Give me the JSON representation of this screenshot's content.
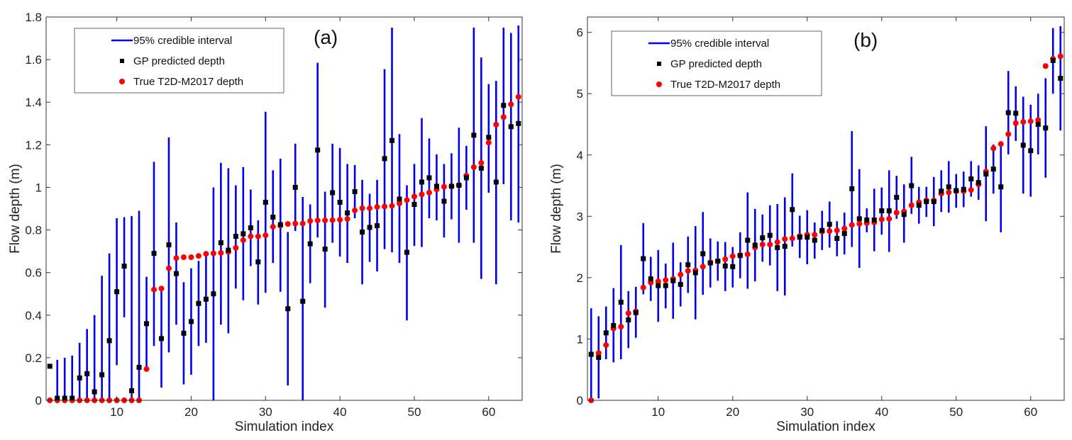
{
  "chart_data": [
    {
      "type": "scatter",
      "panel_label": "(a)",
      "xlabel": "Simulation index",
      "ylabel": "Flow depth (m)",
      "xlim": [
        0.5,
        64.5
      ],
      "ylim": [
        0,
        1.8
      ],
      "xticks": [
        10,
        20,
        30,
        40,
        50,
        60
      ],
      "yticks": [
        0,
        0.2,
        0.4,
        0.6,
        0.8,
        1,
        1.2,
        1.4,
        1.6,
        1.8
      ],
      "grid": false,
      "legend_position": "top-left",
      "legend": [
        "95% credible interval",
        "GP predicted depth",
        "True T2D-M2017 depth"
      ],
      "colors": {
        "interval": "#0000ee",
        "gp": "#000000",
        "true": "#ff0000"
      },
      "gp": [
        0.16,
        0.01,
        0.01,
        0.01,
        0.105,
        0.125,
        0.04,
        0.12,
        0.28,
        0.51,
        0.63,
        0.045,
        0.155,
        0.36,
        0.69,
        0.29,
        0.73,
        0.595,
        0.315,
        0.37,
        0.455,
        0.475,
        0.5,
        0.74,
        0.705,
        0.77,
        0.782,
        0.81,
        0.65,
        0.93,
        0.86,
        0.825,
        0.43,
        1.0,
        0.465,
        0.735,
        1.175,
        0.71,
        0.975,
        0.93,
        0.88,
        0.98,
        0.79,
        0.812,
        0.82,
        1.135,
        1.22,
        0.945,
        0.695,
        0.92,
        1.025,
        1.045,
        1.005,
        0.935,
        1.005,
        1.01,
        1.045,
        1.245,
        1.09,
        1.235,
        1.025,
        1.385,
        1.285,
        1.3
      ],
      "true": [
        0,
        0,
        0,
        0,
        0,
        0,
        0,
        0,
        0,
        0,
        0,
        0,
        0,
        0.147,
        0.52,
        0.525,
        0.62,
        0.668,
        0.672,
        0.672,
        0.678,
        0.688,
        0.69,
        0.692,
        0.697,
        0.716,
        0.752,
        0.77,
        0.77,
        0.775,
        0.815,
        0.82,
        0.828,
        0.83,
        0.83,
        0.842,
        0.845,
        0.845,
        0.846,
        0.848,
        0.852,
        0.892,
        0.902,
        0.902,
        0.908,
        0.91,
        0.913,
        0.925,
        0.94,
        0.957,
        0.967,
        0.975,
        0.99,
        1.003,
        1.005,
        1.01,
        1.055,
        1.095,
        1.115,
        1.21,
        1.295,
        1.33,
        1.39,
        1.425
      ],
      "ci_lower": [
        null,
        0,
        0,
        0,
        0,
        0,
        0,
        0,
        0,
        0.165,
        0.39,
        0,
        0,
        0.145,
        0.255,
        0.06,
        0.225,
        0.355,
        0.075,
        0.12,
        0.255,
        0.27,
        0,
        0.355,
        0.315,
        0.525,
        0.47,
        0.63,
        0.45,
        0.505,
        0.645,
        0.51,
        0.07,
        0.795,
        0,
        0.55,
        0.765,
        0.435,
        0.74,
        0.675,
        0.645,
        0.855,
        0.545,
        0.65,
        0.605,
        0.71,
        0.695,
        0.645,
        0.375,
        0.725,
        0.72,
        0.855,
        0.845,
        0.765,
        0.85,
        0.74,
        0.895,
        0.74,
        0.57,
        0.975,
        0.545,
        1.015,
        0.845,
        0.835
      ],
      "ci_upper": [
        null,
        0.19,
        0.2,
        0.21,
        0.27,
        0.335,
        0.4,
        0.585,
        0.69,
        0.855,
        0.86,
        0.865,
        0.89,
        0.58,
        1.12,
        0.525,
        1.235,
        0.835,
        0.555,
        0.62,
        0.655,
        0.69,
        1.0,
        1.115,
        1.09,
        1.01,
        1.095,
        0.99,
        0.845,
        1.355,
        1.08,
        1.135,
        0.79,
        1.205,
        0.955,
        0.92,
        1.585,
        0.98,
        1.205,
        1.185,
        1.11,
        1.105,
        1.035,
        0.97,
        1.035,
        1.555,
        1.75,
        1.25,
        1.01,
        1.11,
        1.325,
        1.23,
        1.155,
        1.11,
        1.16,
        1.28,
        1.195,
        1.75,
        1.61,
        1.485,
        1.5,
        1.75,
        1.725,
        1.76
      ]
    },
    {
      "type": "scatter",
      "panel_label": "(b)",
      "xlabel": "Simulation index",
      "ylabel": "Flow depth (m)",
      "xlim": [
        0.5,
        64.5
      ],
      "ylim": [
        0,
        6.25
      ],
      "xticks": [
        10,
        20,
        30,
        40,
        50,
        60
      ],
      "yticks": [
        0,
        1,
        2,
        3,
        4,
        5,
        6
      ],
      "grid": false,
      "legend_position": "top-left",
      "legend": [
        "95% credible interval",
        "GP predicted depth",
        "True T2D-M2017 depth"
      ],
      "colors": {
        "interval": "#0000ee",
        "gp": "#000000",
        "true": "#ff0000"
      },
      "gp": [
        0.75,
        0.7,
        1.1,
        1.22,
        1.6,
        1.31,
        1.43,
        2.31,
        1.98,
        1.87,
        1.87,
        1.95,
        1.89,
        2.21,
        2.08,
        2.39,
        2.24,
        2.27,
        2.19,
        2.18,
        2.36,
        2.61,
        2.53,
        2.65,
        2.69,
        2.49,
        2.51,
        3.11,
        2.66,
        2.66,
        2.61,
        2.77,
        2.87,
        2.64,
        2.72,
        3.45,
        2.96,
        2.94,
        2.94,
        3.09,
        3.09,
        3.31,
        3.03,
        3.5,
        3.18,
        3.24,
        3.24,
        3.41,
        3.48,
        3.42,
        3.44,
        3.61,
        3.55,
        3.69,
        3.77,
        3.48,
        4.69,
        4.68,
        4.16,
        4.07,
        4.5,
        4.44,
        5.54,
        5.25
      ],
      "true": [
        0,
        0.77,
        0.9,
        1.17,
        1.2,
        1.42,
        1.45,
        1.84,
        1.92,
        1.94,
        1.96,
        1.98,
        2.05,
        2.11,
        2.12,
        2.18,
        2.25,
        2.27,
        2.3,
        2.35,
        2.37,
        2.38,
        2.49,
        2.54,
        2.54,
        2.58,
        2.63,
        2.64,
        2.68,
        2.7,
        2.7,
        2.75,
        2.76,
        2.77,
        2.8,
        2.86,
        2.88,
        2.89,
        2.9,
        2.95,
        2.96,
        3.06,
        3.08,
        3.18,
        3.23,
        3.26,
        3.26,
        3.37,
        3.39,
        3.41,
        3.41,
        3.43,
        3.52,
        3.73,
        4.11,
        4.18,
        4.34,
        4.52,
        4.54,
        4.55,
        4.57,
        5.45,
        5.57,
        5.61
      ],
      "ci_lower": [
        0,
        0.03,
        0.67,
        0.62,
        0.67,
        0.85,
        1.02,
        1.73,
        1.62,
        1.28,
        1.5,
        1.33,
        1.53,
        1.75,
        1.32,
        1.72,
        1.84,
        1.95,
        1.78,
        1.84,
        1.99,
        1.82,
        1.94,
        2.26,
        2.2,
        1.78,
        1.71,
        2.51,
        2.32,
        2.22,
        2.31,
        2.45,
        2.49,
        2.35,
        2.38,
        2.5,
        2.16,
        2.74,
        2.43,
        2.7,
        2.42,
        2.96,
        2.57,
        3.04,
        2.88,
        2.99,
        2.84,
        3.07,
        3.06,
        3.14,
        3.15,
        3.32,
        3.27,
        2.92,
        3.37,
        2.74,
        4.01,
        4.23,
        3.37,
        3.32,
        4.01,
        3.63,
        5.0,
        4.4
      ],
      "ci_upper": [
        1.5,
        1.37,
        1.53,
        1.83,
        2.53,
        1.78,
        1.85,
        2.89,
        2.34,
        2.45,
        2.23,
        2.57,
        2.25,
        2.67,
        2.84,
        3.07,
        2.64,
        2.59,
        2.58,
        2.5,
        2.74,
        3.39,
        3.12,
        3.03,
        3.18,
        3.2,
        3.31,
        3.7,
        3.01,
        3.1,
        2.9,
        3.09,
        3.24,
        2.92,
        3.06,
        4.39,
        3.77,
        3.13,
        3.45,
        3.47,
        3.75,
        3.66,
        3.52,
        3.97,
        3.48,
        3.48,
        3.64,
        3.75,
        3.9,
        3.69,
        3.73,
        3.9,
        3.83,
        4.47,
        4.17,
        4.19,
        5.37,
        5.12,
        4.95,
        4.82,
        5.0,
        5.25,
        6.07,
        6.1
      ]
    }
  ]
}
